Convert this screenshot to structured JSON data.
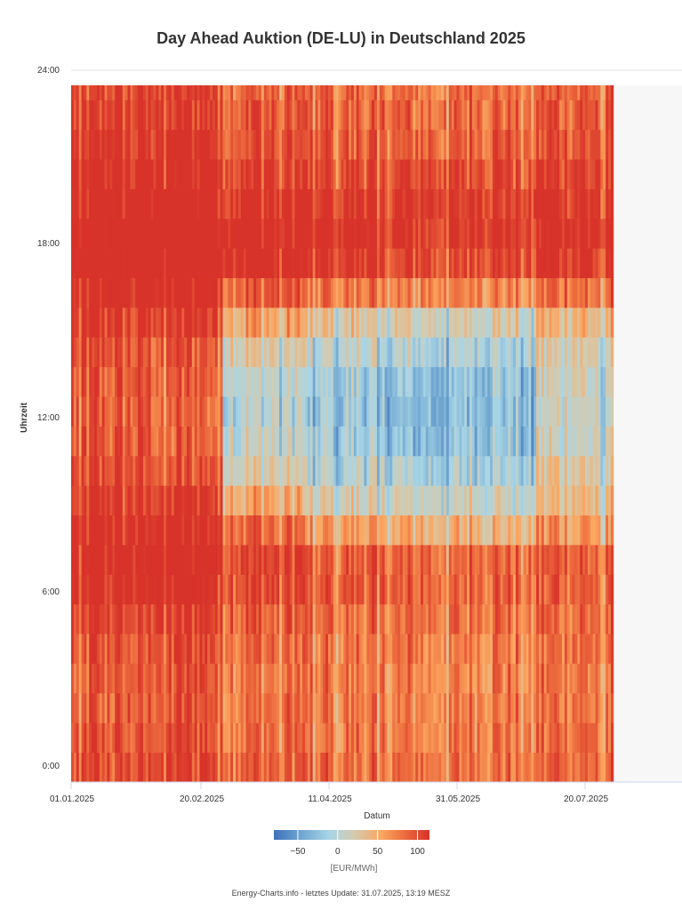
{
  "chart_data": {
    "type": "heatmap",
    "title": "Day Ahead Auktion (DE-LU) in Deutschland 2025",
    "xlabel": "Datum",
    "ylabel": "Uhrzeit",
    "x_tick_labels": [
      "01.01.2025",
      "20.02.2025",
      "11.04.2025",
      "31.05.2025",
      "20.07.2025"
    ],
    "y_tick_labels": [
      "0:00",
      "6:00",
      "12:00",
      "18:00",
      "24:00"
    ],
    "x_range": [
      "01.01.2025",
      "31.07.2025"
    ],
    "y_range": [
      0,
      24
    ],
    "color_scale": {
      "unit": "[EUR/MWh]",
      "tick_labels": [
        "−50",
        "0",
        "50",
        "100"
      ],
      "stops": [
        {
          "value": -80,
          "color": "#3e72bb"
        },
        {
          "value": -40,
          "color": "#78aed4"
        },
        {
          "value": -10,
          "color": "#a9d5e5"
        },
        {
          "value": 20,
          "color": "#d3cbb0"
        },
        {
          "value": 55,
          "color": "#fba65f"
        },
        {
          "value": 85,
          "color": "#ec6a3d"
        },
        {
          "value": 115,
          "color": "#d8332a"
        }
      ]
    },
    "typical_hourly_price_by_month": {
      "hours": [
        "0",
        "1",
        "2",
        "3",
        "4",
        "5",
        "6",
        "7",
        "8",
        "9",
        "10",
        "11",
        "12",
        "13",
        "14",
        "15",
        "16",
        "17",
        "18",
        "19",
        "20",
        "21",
        "22",
        "23"
      ],
      "January": [
        100,
        95,
        92,
        92,
        95,
        105,
        120,
        125,
        120,
        110,
        100,
        95,
        92,
        95,
        100,
        110,
        125,
        140,
        140,
        130,
        120,
        112,
        108,
        100
      ],
      "February": [
        110,
        105,
        100,
        100,
        105,
        115,
        130,
        140,
        130,
        115,
        100,
        90,
        88,
        92,
        100,
        115,
        135,
        150,
        150,
        140,
        130,
        120,
        115,
        110
      ],
      "March": [
        90,
        85,
        82,
        82,
        85,
        92,
        105,
        110,
        90,
        55,
        25,
        10,
        5,
        8,
        25,
        55,
        95,
        130,
        135,
        120,
        110,
        100,
        95,
        90
      ],
      "April": [
        85,
        80,
        78,
        78,
        80,
        85,
        95,
        95,
        60,
        20,
        0,
        -10,
        -15,
        -10,
        5,
        30,
        80,
        115,
        125,
        115,
        105,
        95,
        90,
        85
      ],
      "May": [
        80,
        75,
        72,
        72,
        75,
        80,
        88,
        85,
        45,
        10,
        -10,
        -25,
        -30,
        -25,
        -5,
        20,
        70,
        105,
        115,
        110,
        100,
        90,
        85,
        80
      ],
      "June": [
        85,
        80,
        78,
        78,
        80,
        85,
        92,
        90,
        50,
        15,
        -5,
        -15,
        -20,
        -15,
        0,
        25,
        75,
        110,
        120,
        115,
        105,
        95,
        90,
        85
      ],
      "July": [
        90,
        85,
        82,
        82,
        85,
        90,
        95,
        92,
        65,
        40,
        25,
        15,
        10,
        15,
        25,
        45,
        85,
        115,
        125,
        120,
        110,
        100,
        95,
        90
      ]
    }
  },
  "footer": {
    "text": "Energy-Charts.info - letztes Update: 31.07.2025, 13:19 MESZ"
  }
}
